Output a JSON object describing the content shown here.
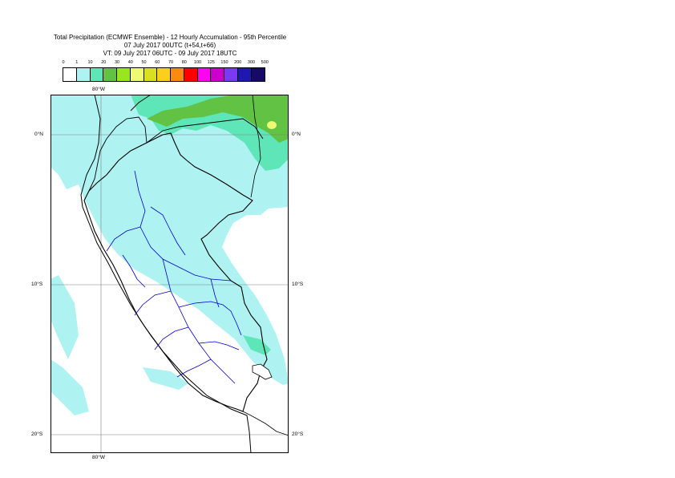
{
  "title": {
    "line1": "Total Precipitation (ECMWF Ensemble) - 12 Hourly Accumulation - 95th Percentile",
    "line2": "07 July 2017 00UTC (t+54,t+66)",
    "line3": "VT: 09 July 2017 06UTC - 09 July 2017 18UTC"
  },
  "legend": {
    "labels": [
      "0",
      "1",
      "10",
      "20",
      "30",
      "40",
      "50",
      "60",
      "70",
      "80",
      "100",
      "125",
      "150",
      "200",
      "300",
      "500"
    ],
    "colors": [
      "#ffffff",
      "#aef2f2",
      "#5fe6b8",
      "#61c243",
      "#99e620",
      "#edfa72",
      "#dbdf22",
      "#fccf1c",
      "#fd8a10",
      "#fe0000",
      "#fd05f0",
      "#cc00cc",
      "#7a3af2",
      "#1f18b0",
      "#170a66"
    ]
  },
  "map": {
    "lat_labels": {
      "n0": "0°N",
      "s10": "10°S",
      "s20": "20°S"
    },
    "lon_labels": {
      "top": "80°W",
      "bottom": "80°W"
    },
    "colors": {
      "land_rain_light": "#aef2f2",
      "rain_medium": "#5fe6b8",
      "rain_heavy": "#61c243",
      "rain_peak": "#edfa72",
      "country_border": "#000000",
      "region_border": "#0000cc",
      "grid": "#808080"
    }
  }
}
